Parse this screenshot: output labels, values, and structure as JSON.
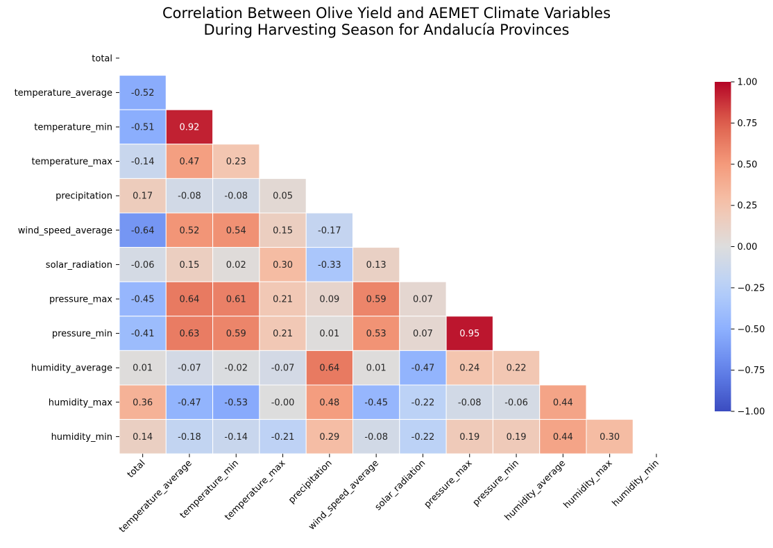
{
  "chart_data": {
    "type": "heatmap",
    "title_lines": [
      "Correlation Between Olive Yield and AEMET Climate Variables",
      "During Harvesting Season for Andalucía Provinces"
    ],
    "colormap": "coolwarm",
    "annot_format": "0.00",
    "mask": "upper triangle including diagonal",
    "variables": [
      "total",
      "temperature_average",
      "temperature_min",
      "temperature_max",
      "precipitation",
      "wind_speed_average",
      "solar_radiation",
      "pressure_max",
      "pressure_min",
      "humidity_average",
      "humidity_max",
      "humidity_min"
    ],
    "lower_triangle_rows": [
      [],
      [
        -0.52
      ],
      [
        -0.51,
        0.92
      ],
      [
        -0.14,
        0.47,
        0.23
      ],
      [
        0.17,
        -0.08,
        -0.08,
        0.05
      ],
      [
        -0.64,
        0.52,
        0.54,
        0.15,
        -0.17
      ],
      [
        -0.06,
        0.15,
        0.02,
        0.3,
        -0.33,
        0.13
      ],
      [
        -0.45,
        0.64,
        0.61,
        0.21,
        0.09,
        0.59,
        0.07
      ],
      [
        -0.41,
        0.63,
        0.59,
        0.21,
        0.01,
        0.53,
        0.07,
        0.95
      ],
      [
        0.01,
        -0.07,
        -0.02,
        -0.07,
        0.64,
        0.01,
        -0.47,
        0.24,
        0.22
      ],
      [
        0.36,
        -0.47,
        -0.53,
        -0.0,
        0.48,
        -0.45,
        -0.22,
        -0.08,
        -0.06,
        0.44
      ],
      [
        0.14,
        -0.18,
        -0.14,
        -0.21,
        0.29,
        -0.08,
        -0.22,
        0.19,
        0.19,
        0.44,
        0.3
      ]
    ],
    "colorbar": {
      "range": [
        -1.0,
        1.0
      ],
      "ticks": [
        1.0,
        0.75,
        0.5,
        0.25,
        0.0,
        -0.25,
        -0.5,
        -0.75,
        -1.0
      ],
      "tick_labels": [
        "1.00",
        "0.75",
        "0.50",
        "0.25",
        "0.00",
        "−0.25",
        "−0.50",
        "−0.75",
        "−1.00"
      ]
    }
  }
}
